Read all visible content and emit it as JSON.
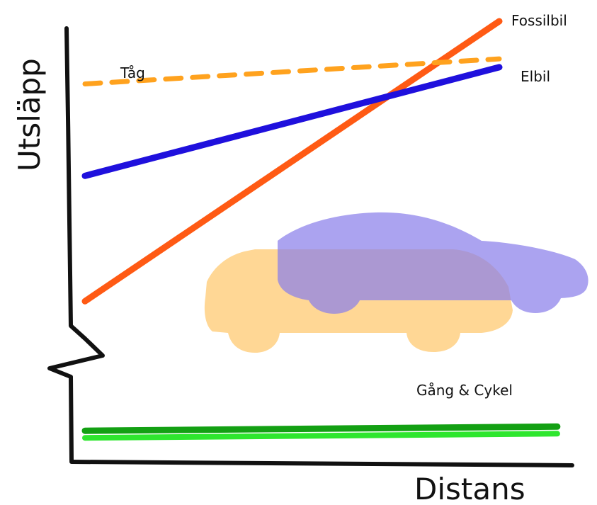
{
  "chart_data": {
    "type": "line",
    "title": "",
    "xlabel": "Distans",
    "ylabel": "Utsläpp",
    "grid": false,
    "legend": "none (series labelled directly at line ends)",
    "y_axis": "broken (zigzag break marker)",
    "series": [
      {
        "name": "Fossilbil",
        "color": "#ff5a14",
        "style": "solid",
        "x": [
          0,
          1
        ],
        "y": [
          0.33,
          1.0
        ]
      },
      {
        "name": "Tåg",
        "color": "#ffa21e",
        "style": "dashed",
        "x": [
          0,
          1
        ],
        "y": [
          0.85,
          0.91
        ]
      },
      {
        "name": "Elbil",
        "color": "#1f10dd",
        "style": "solid",
        "x": [
          0,
          1
        ],
        "y": [
          0.63,
          0.89
        ]
      },
      {
        "name": "Gång & Cykel",
        "color": "#13a013",
        "style": "solid",
        "x": [
          0,
          1
        ],
        "y": [
          0.02,
          0.03
        ]
      }
    ],
    "illustrations": [
      {
        "name": "car-illustration",
        "color": "#ffd38a"
      },
      {
        "name": "electric-car-illustration",
        "color": "#9b93ec"
      }
    ]
  }
}
